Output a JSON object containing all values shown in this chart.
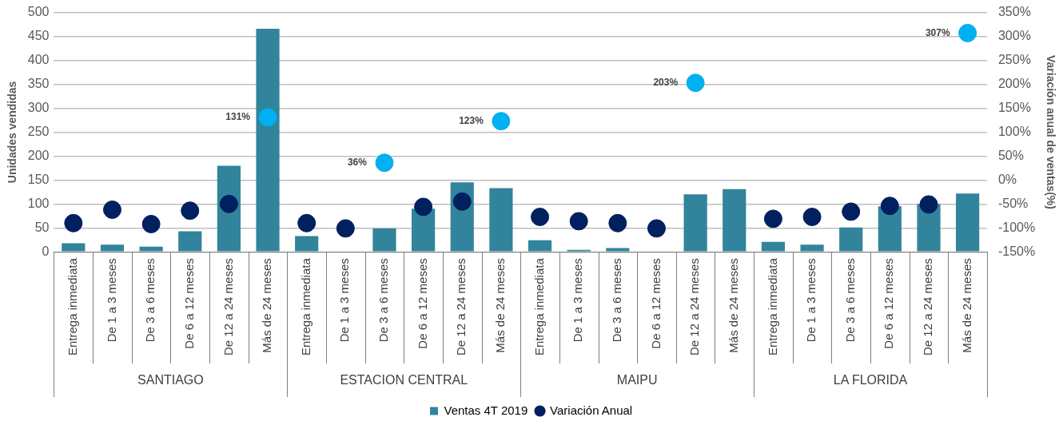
{
  "chart_data": {
    "type": "bar",
    "categories": [
      "Entrega inmediata",
      "De 1 a 3 meses",
      "De 3 a 6 meses",
      "De 6 a 12 meses",
      "De 12 a 24 meses",
      "Más de 24 meses",
      "Entrega inmediata",
      "De 1 a 3 meses",
      "De 3 a 6 meses",
      "De 6 a 12 meses",
      "De 12 a 24 meses",
      "Más de 24 meses",
      "Entrega inmediata",
      "De 1 a 3 meses",
      "De 3 a 6 meses",
      "De 6 a 12 meses",
      "De 12 a 24 meses",
      "Más de 24 meses",
      "Entrega inmediata",
      "De 1 a 3 meses",
      "De 3 a 6 meses",
      "De 6 a 12 meses",
      "De 12 a 24 meses",
      "Más de 24 meses"
    ],
    "series": [
      {
        "name": "Ventas 4T 2019",
        "color": "#31849b",
        "values": [
          18,
          15,
          11,
          43,
          180,
          466,
          33,
          0,
          49,
          90,
          145,
          133,
          24,
          4,
          8,
          0,
          120,
          131,
          21,
          15,
          51,
          95,
          100,
          122
        ]
      },
      {
        "name": "Variación Anual",
        "type": "scatter",
        "axis": "y2",
        "marker": "circle",
        "color": "#002060",
        "colors": [
          "#002060",
          "#002060",
          "#002060",
          "#002060",
          "#002060",
          "#00b0f0",
          "#002060",
          "#002060",
          "#00b0f0",
          "#002060",
          "#002060",
          "#00b0f0",
          "#002060",
          "#002060",
          "#002060",
          "#002060",
          "#00b0f0",
          "#002060",
          "#002060",
          "#002060",
          "#002060",
          "#002060",
          "#002060",
          "#00b0f0"
        ],
        "values": [
          -90,
          -62,
          -92,
          -64,
          -50,
          131,
          -90,
          -101,
          36,
          -56,
          -45,
          123,
          -77,
          -86,
          -90,
          -101,
          203,
          null,
          -81,
          -77,
          -66,
          -54,
          -51,
          307
        ],
        "value_labels": [
          null,
          null,
          null,
          null,
          null,
          "131%",
          null,
          null,
          "36%",
          null,
          null,
          "123%",
          null,
          null,
          null,
          null,
          "203%",
          null,
          null,
          null,
          null,
          null,
          null,
          "307%"
        ]
      }
    ],
    "ylabel": "Unidades vendidas",
    "y2label": "Variación anual de ventas(%)",
    "ylim": [
      0,
      500
    ],
    "yticks": [
      0,
      50,
      100,
      150,
      200,
      250,
      300,
      350,
      400,
      450,
      500
    ],
    "y2lim": [
      -150,
      350
    ],
    "y2ticks": [
      {
        "value": -150,
        "label": "-150%"
      },
      {
        "value": -100,
        "label": "-100%"
      },
      {
        "value": -50,
        "label": "-50%"
      },
      {
        "value": 0,
        "label": "0%"
      },
      {
        "value": 50,
        "label": "50%"
      },
      {
        "value": 100,
        "label": "100%"
      },
      {
        "value": 150,
        "label": "150%"
      },
      {
        "value": 200,
        "label": "200%"
      },
      {
        "value": 250,
        "label": "250%"
      },
      {
        "value": 300,
        "label": "300%"
      },
      {
        "value": 350,
        "label": "350%"
      }
    ],
    "annotations": [
      "SANTIAGO",
      "ESTACION CENTRAL",
      "MAIPU",
      "LA FLORIDA"
    ],
    "grid": "y",
    "legend": "bottom"
  }
}
